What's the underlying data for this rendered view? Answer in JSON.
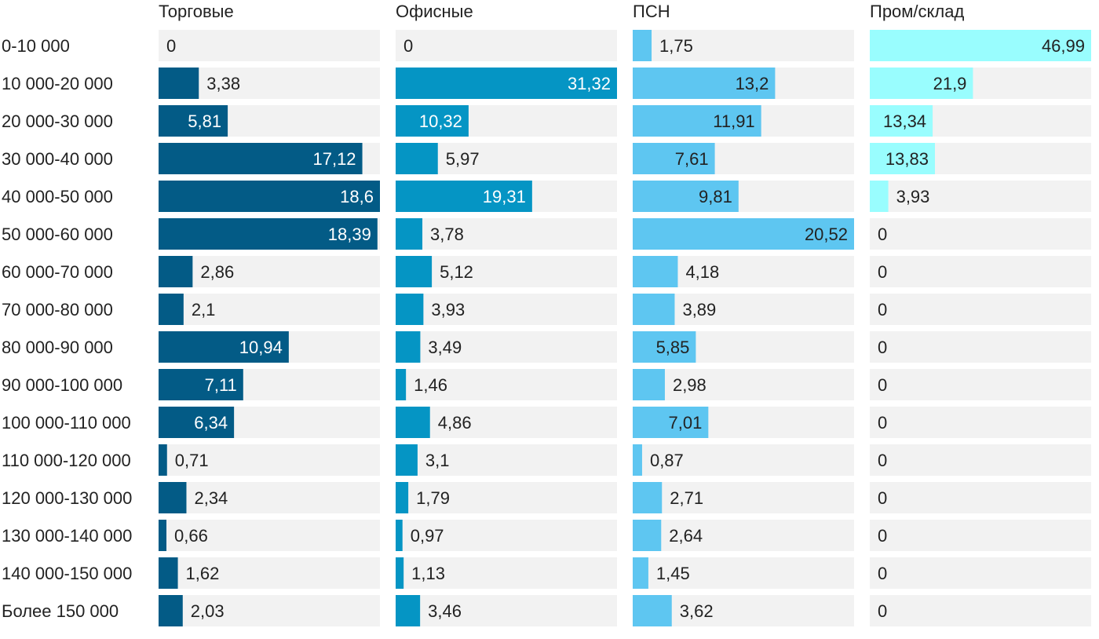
{
  "chart_data": {
    "type": "bar",
    "categories": [
      "0-10 000",
      "10 000-20 000",
      "20 000-30 000",
      "30 000-40 000",
      "40 000-50 000",
      "50 000-60 000",
      "60 000-70 000",
      "70 000-80 000",
      "80 000-90 000",
      "90 000-100 000",
      "100 000-110 000",
      "110 000-120 000",
      "120 000-130 000",
      "130 000-140 000",
      "140 000-150 000",
      "Более 150 000"
    ],
    "series": [
      {
        "name": "Торговые",
        "color": "#035b86",
        "values": [
          0,
          3.38,
          5.81,
          17.12,
          18.6,
          18.39,
          2.86,
          2.1,
          10.94,
          7.11,
          6.34,
          0.71,
          2.34,
          0.66,
          1.62,
          2.03
        ]
      },
      {
        "name": "Офисные",
        "color": "#0595c4",
        "values": [
          0,
          31.32,
          10.32,
          5.97,
          19.31,
          3.78,
          5.12,
          3.93,
          3.49,
          1.46,
          4.86,
          3.1,
          1.79,
          0.97,
          1.13,
          3.46
        ]
      },
      {
        "name": "ПСН",
        "color": "#5ec6f1",
        "values": [
          1.75,
          13.2,
          11.91,
          7.61,
          9.81,
          20.52,
          4.18,
          3.89,
          5.85,
          2.98,
          7.01,
          0.87,
          2.71,
          2.64,
          1.45,
          3.62
        ]
      },
      {
        "name": "Пром/склад",
        "color": "#99fdfe",
        "values": [
          46.99,
          21.9,
          13.34,
          13.83,
          3.93,
          0,
          0,
          0,
          0,
          0,
          0,
          0,
          0,
          0,
          0,
          0
        ]
      }
    ],
    "value_labels": [
      [
        "0",
        "3,38",
        "5,81",
        "17,12",
        "18,6",
        "18,39",
        "2,86",
        "2,1",
        "10,94",
        "7,11",
        "6,34",
        "0,71",
        "2,34",
        "0,66",
        "1,62",
        "2,03"
      ],
      [
        "0",
        "31,32",
        "10,32",
        "5,97",
        "19,31",
        "3,78",
        "5,12",
        "3,93",
        "3,49",
        "1,46",
        "4,86",
        "3,1",
        "1,79",
        "0,97",
        "1,13",
        "3,46"
      ],
      [
        "1,75",
        "13,2",
        "11,91",
        "7,61",
        "9,81",
        "20,52",
        "4,18",
        "3,89",
        "5,85",
        "2,98",
        "7,01",
        "0,87",
        "2,71",
        "2,64",
        "1,45",
        "3,62"
      ],
      [
        "46,99",
        "21,9",
        "13,34",
        "13,83",
        "3,93",
        "0",
        "0",
        "0",
        "0",
        "0",
        "0",
        "0",
        "0",
        "0",
        "0",
        "0"
      ]
    ],
    "panel_max": [
      18.6,
      31.32,
      20.52,
      46.99
    ],
    "background_color": "#f2f2f2",
    "grid": false,
    "legend": "none"
  }
}
